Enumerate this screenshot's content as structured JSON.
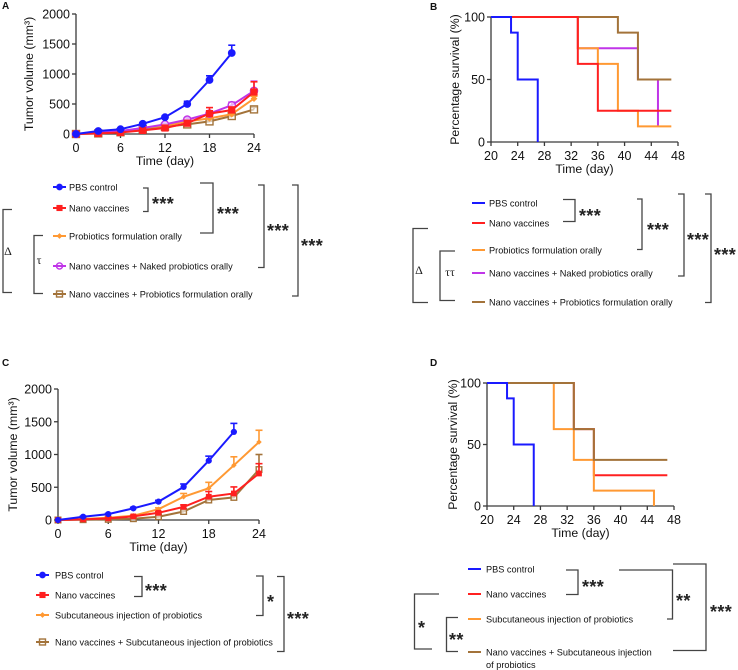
{
  "figure": {
    "panel_labels": [
      "A",
      "B",
      "C",
      "D"
    ]
  },
  "chart_data": [
    {
      "panel": "A",
      "type": "line",
      "title": "",
      "xlabel": "Time (day)",
      "ylabel": "Tumor volume (mm³)",
      "xlim": [
        0,
        24
      ],
      "ylim": [
        0,
        2000
      ],
      "xticks": [
        0,
        6,
        12,
        18,
        24
      ],
      "yticks": [
        0,
        500,
        1000,
        1500,
        2000
      ],
      "grid": false,
      "legend_position": "below",
      "x": [
        0,
        3,
        6,
        9,
        12,
        15,
        18,
        21,
        24
      ],
      "series": [
        {
          "name": "PBS control",
          "color": "#1a1aff",
          "marker": "filled-circle",
          "values": [
            0,
            50,
            80,
            170,
            280,
            500,
            900,
            1350,
            null
          ],
          "errors": [
            0,
            10,
            15,
            20,
            25,
            45,
            70,
            130,
            null
          ]
        },
        {
          "name": "Nano vaccines",
          "color": "#ff2020",
          "marker": "filled-square",
          "values": [
            0,
            10,
            25,
            60,
            100,
            180,
            340,
            400,
            700
          ],
          "errors": [
            0,
            5,
            8,
            12,
            20,
            30,
            100,
            50,
            170
          ]
        },
        {
          "name": "Probiotics formulation orally",
          "color": "#ff9933",
          "marker": "filled-diamond",
          "values": [
            0,
            20,
            45,
            100,
            140,
            210,
            260,
            330,
            590
          ],
          "errors": [
            0,
            5,
            8,
            10,
            15,
            20,
            25,
            30,
            40
          ]
        },
        {
          "name": "Nano vaccines + Naked probiotics orally",
          "color": "#c035e8",
          "marker": "open-circle",
          "values": [
            0,
            20,
            50,
            100,
            160,
            240,
            340,
            480,
            720
          ],
          "errors": [
            0,
            5,
            8,
            12,
            20,
            30,
            40,
            50,
            160
          ]
        },
        {
          "name": "Nano vaccines + Probiotics formulation orally",
          "color": "#a3733a",
          "marker": "open-square",
          "values": [
            0,
            10,
            30,
            80,
            120,
            160,
            210,
            300,
            410
          ],
          "errors": [
            0,
            4,
            5,
            8,
            12,
            15,
            20,
            25,
            35
          ]
        }
      ],
      "annotations": [
        {
          "text": "***",
          "compares": [
            "PBS control",
            "Nano vaccines"
          ]
        },
        {
          "text": "***",
          "compares": [
            "PBS control",
            "Probiotics formulation orally"
          ]
        },
        {
          "text": "***",
          "compares": [
            "PBS control",
            "Nano vaccines + Naked probiotics orally"
          ]
        },
        {
          "text": "***",
          "compares": [
            "PBS control",
            "Nano vaccines + Probiotics formulation orally"
          ]
        },
        {
          "text": "Δ",
          "compares": [
            "Nano vaccines",
            "Nano vaccines + Probiotics formulation orally"
          ]
        },
        {
          "text": "τ",
          "compares": [
            "Probiotics formulation orally",
            "Nano vaccines + Probiotics formulation orally"
          ]
        }
      ]
    },
    {
      "panel": "B",
      "type": "line",
      "subtype": "survival-step",
      "title": "",
      "xlabel": "Time (day)",
      "ylabel": "Percentage survival (%)",
      "xlim": [
        20,
        48
      ],
      "ylim": [
        0,
        100
      ],
      "xticks": [
        20,
        24,
        28,
        32,
        36,
        40,
        44,
        48
      ],
      "yticks": [
        0,
        50,
        100
      ],
      "grid": false,
      "legend_position": "below",
      "series": [
        {
          "name": "PBS control",
          "color": "#1a1aff",
          "steps": {
            "x": [
              20,
              23,
              24,
              27
            ],
            "y": [
              100,
              87.5,
              50,
              0
            ]
          },
          "end": 27
        },
        {
          "name": "Nano vaccines",
          "color": "#ff2020",
          "steps": {
            "x": [
              20,
              33,
              36
            ],
            "y": [
              100,
              62.5,
              25
            ]
          },
          "end": 47
        },
        {
          "name": "Probiotics formulation orally",
          "color": "#ff9933",
          "steps": {
            "x": [
              20,
              33,
              36,
              39,
              42
            ],
            "y": [
              100,
              75,
              62.5,
              25,
              12.5
            ]
          },
          "end": 47
        },
        {
          "name": "Nano vaccines + Naked probiotics orally",
          "color": "#c035e8",
          "steps": {
            "x": [
              20,
              33,
              42,
              45
            ],
            "y": [
              100,
              75,
              50,
              12.5
            ]
          },
          "end": 45
        },
        {
          "name": "Nano vaccines + Probiotics formulation orally",
          "color": "#a3733a",
          "steps": {
            "x": [
              20,
              39,
              42
            ],
            "y": [
              100,
              87.5,
              50
            ]
          },
          "end": 47
        }
      ],
      "annotations": [
        {
          "text": "***",
          "compares": [
            "PBS control",
            "Nano vaccines"
          ]
        },
        {
          "text": "***",
          "compares": [
            "PBS control",
            "Probiotics formulation orally"
          ]
        },
        {
          "text": "***",
          "compares": [
            "PBS control",
            "Nano vaccines + Naked probiotics orally"
          ]
        },
        {
          "text": "***",
          "compares": [
            "PBS control",
            "Nano vaccines + Probiotics formulation orally"
          ]
        },
        {
          "text": "Δ",
          "compares": [
            "Nano vaccines",
            "Nano vaccines + Probiotics formulation orally"
          ]
        },
        {
          "text": "ττ",
          "compares": [
            "Probiotics formulation orally",
            "Nano vaccines + Probiotics formulation orally"
          ]
        }
      ]
    },
    {
      "panel": "C",
      "type": "line",
      "title": "",
      "xlabel": "Time (day)",
      "ylabel": "Tumor volume (mm³)",
      "xlim": [
        0,
        24
      ],
      "ylim": [
        0,
        2000
      ],
      "xticks": [
        0,
        6,
        12,
        18,
        24
      ],
      "yticks": [
        0,
        500,
        1000,
        1500,
        2000
      ],
      "grid": false,
      "legend_position": "below",
      "x": [
        0,
        3,
        6,
        9,
        12,
        15,
        18,
        21,
        24
      ],
      "series": [
        {
          "name": "PBS control",
          "color": "#1a1aff",
          "marker": "filled-circle",
          "values": [
            0,
            50,
            90,
            178,
            280,
            505,
            905,
            1345,
            null
          ],
          "errors": [
            0,
            8,
            10,
            15,
            20,
            45,
            70,
            130,
            null
          ]
        },
        {
          "name": "Nano vaccines",
          "color": "#ff2020",
          "marker": "filled-square",
          "values": [
            0,
            10,
            25,
            55,
            110,
            200,
            355,
            405,
            710
          ],
          "errors": [
            0,
            4,
            6,
            10,
            15,
            30,
            80,
            100,
            150
          ]
        },
        {
          "name": "Subcutaneous injection of probiotics",
          "color": "#ff9933",
          "marker": "filled-diamond",
          "values": [
            0,
            15,
            35,
            65,
            165,
            355,
            485,
            835,
            1190
          ],
          "errors": [
            0,
            5,
            8,
            12,
            20,
            50,
            90,
            130,
            180
          ]
        },
        {
          "name": "Nano vaccines + Subcutaneous injection of probiotics",
          "color": "#a3733a",
          "marker": "open-square",
          "values": [
            0,
            5,
            10,
            20,
            50,
            130,
            305,
            345,
            770
          ],
          "errors": [
            0,
            3,
            4,
            6,
            10,
            20,
            30,
            40,
            230
          ]
        }
      ],
      "annotations": [
        {
          "text": "***",
          "compares": [
            "PBS control",
            "Nano vaccines"
          ]
        },
        {
          "text": "*",
          "compares": [
            "PBS control",
            "Subcutaneous injection of probiotics"
          ]
        },
        {
          "text": "***",
          "compares": [
            "PBS control",
            "Nano vaccines + Subcutaneous injection of probiotics"
          ]
        }
      ]
    },
    {
      "panel": "D",
      "type": "line",
      "subtype": "survival-step",
      "title": "",
      "xlabel": "Time (day)",
      "ylabel": "Percentage survival (%)",
      "xlim": [
        20,
        48
      ],
      "ylim": [
        0,
        100
      ],
      "xticks": [
        20,
        24,
        28,
        32,
        36,
        40,
        44,
        48
      ],
      "yticks": [
        0,
        50,
        100
      ],
      "grid": false,
      "legend_position": "below",
      "series": [
        {
          "name": "PBS control",
          "color": "#1a1aff",
          "steps": {
            "x": [
              20,
              23,
              24,
              27
            ],
            "y": [
              100,
              87.5,
              50,
              0
            ]
          },
          "end": 27
        },
        {
          "name": "Nano vaccines",
          "color": "#ff2020",
          "steps": {
            "x": [
              20,
              33,
              36
            ],
            "y": [
              100,
              62.5,
              25
            ]
          },
          "end": 47
        },
        {
          "name": "Subcutaneous injection of probiotics",
          "color": "#ff9933",
          "steps": {
            "x": [
              20,
              30,
              33,
              36,
              45
            ],
            "y": [
              100,
              62.5,
              37.5,
              12.5,
              0
            ]
          },
          "end": 45
        },
        {
          "name": "Nano vaccines + Subcutaneous injection of probiotics",
          "color": "#a3733a",
          "steps": {
            "x": [
              20,
              33,
              36
            ],
            "y": [
              100,
              62.5,
              37.5
            ]
          },
          "end": 47,
          "legend_lines": [
            "Nano vaccines + Subcutaneous injection",
            "of probiotics"
          ]
        }
      ],
      "annotations": [
        {
          "text": "***",
          "compares": [
            "PBS control",
            "Nano vaccines"
          ]
        },
        {
          "text": "**",
          "compares": [
            "PBS control",
            "Subcutaneous injection of probiotics"
          ]
        },
        {
          "text": "***",
          "compares": [
            "PBS control",
            "Nano vaccines + Subcutaneous injection of probiotics"
          ]
        },
        {
          "text": "*",
          "compares": [
            "Nano vaccines",
            "Nano vaccines + Subcutaneous injection of probiotics"
          ]
        },
        {
          "text": "**",
          "compares": [
            "Subcutaneous injection of probiotics",
            "Nano vaccines + Subcutaneous injection of probiotics"
          ]
        }
      ]
    }
  ]
}
